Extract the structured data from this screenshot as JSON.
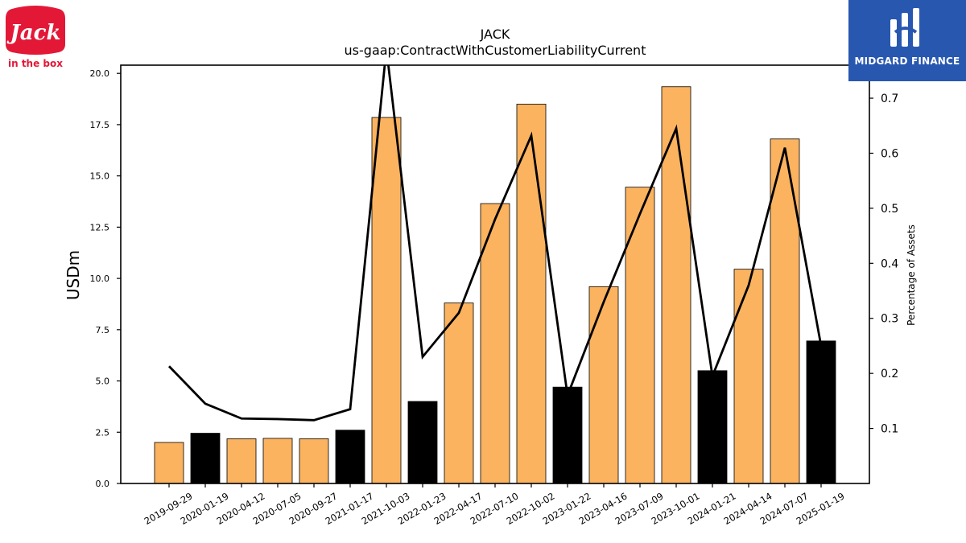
{
  "title": "JACK",
  "subtitle": "us-gaap:ContractWithCustomerLiabilityCurrent",
  "logos": {
    "left": {
      "text": "Jack",
      "subtext": "in the box",
      "color": "#e31837"
    },
    "right": {
      "text": "MIDGARD FINANCE",
      "color": "#2857b0"
    }
  },
  "chart_data": {
    "type": "bar",
    "title": "JACK",
    "subtitle": "us-gaap:ContractWithCustomerLiabilityCurrent",
    "ylabel": "USDm",
    "y2label": "Percentage of Assets",
    "ylim": [
      0,
      20.4
    ],
    "y2lim": [
      0,
      0.76
    ],
    "yticks": [
      "0.0",
      "2.5",
      "5.0",
      "7.5",
      "10.0",
      "12.5",
      "15.0",
      "17.5",
      "20.0"
    ],
    "y2ticks": [
      "0.1",
      "0.2",
      "0.3",
      "0.4",
      "0.5",
      "0.6",
      "0.7"
    ],
    "categories": [
      "2019-09-29",
      "2020-01-19",
      "2020-04-12",
      "2020-07-05",
      "2020-09-27",
      "2021-01-17",
      "2021-10-03",
      "2022-01-23",
      "2022-04-17",
      "2022-07-10",
      "2022-10-02",
      "2023-01-22",
      "2023-04-16",
      "2023-07-09",
      "2023-10-01",
      "2024-01-21",
      "2024-04-14",
      "2024-07-07",
      "2025-01-19"
    ],
    "series": [
      {
        "type": "bar",
        "values": [
          2.0,
          2.45,
          2.18,
          2.2,
          2.18,
          2.6,
          17.85,
          4.0,
          8.8,
          13.65,
          18.5,
          4.7,
          9.6,
          14.45,
          19.35,
          5.5,
          10.45,
          16.8,
          6.95
        ],
        "colors": [
          "#fbb360",
          "#000000",
          "#fbb360",
          "#fbb360",
          "#fbb360",
          "#000000",
          "#fbb360",
          "#000000",
          "#fbb360",
          "#fbb360",
          "#fbb360",
          "#000000",
          "#fbb360",
          "#fbb360",
          "#fbb360",
          "#000000",
          "#fbb360",
          "#fbb360",
          "#000000"
        ]
      },
      {
        "type": "line",
        "axis": "right",
        "color": "#000000",
        "values": [
          0.213,
          0.145,
          0.118,
          0.117,
          0.115,
          0.135,
          0.79,
          0.23,
          0.31,
          0.48,
          0.632,
          0.16,
          0.33,
          0.49,
          0.645,
          0.195,
          0.36,
          0.61,
          0.25
        ]
      }
    ],
    "grid": false
  }
}
